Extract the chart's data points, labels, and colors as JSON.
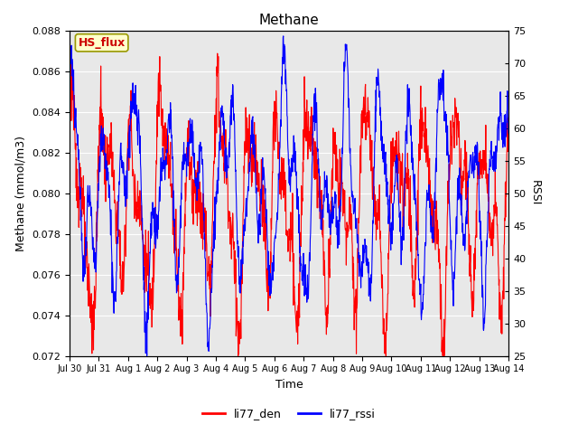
{
  "title": "Methane",
  "xlabel": "Time",
  "ylabel_left": "Methane (mmol/m3)",
  "ylabel_right": "RSSI",
  "ylim_left": [
    0.072,
    0.088
  ],
  "ylim_right": [
    25,
    75
  ],
  "yticks_left": [
    0.072,
    0.074,
    0.076,
    0.078,
    0.08,
    0.082,
    0.084,
    0.086,
    0.088
  ],
  "yticks_right": [
    25,
    30,
    35,
    40,
    45,
    50,
    55,
    60,
    65,
    70,
    75
  ],
  "xtick_labels": [
    "Jul 30",
    "Jul 31",
    "Aug 1",
    "Aug 2",
    "Aug 3",
    "Aug 4",
    "Aug 5",
    "Aug 6",
    "Aug 7",
    "Aug 8",
    "Aug 9",
    "Aug 10",
    "Aug 11",
    "Aug 12",
    "Aug 13",
    "Aug 14"
  ],
  "color_red": "#FF0000",
  "color_blue": "#0000FF",
  "legend_labels": [
    "li77_den",
    "li77_rssi"
  ],
  "hs_flux_label": "HS_flux",
  "hs_flux_bg": "#FFFFCC",
  "hs_flux_border": "#999900",
  "hs_flux_text_color": "#CC0000",
  "plot_bg": "#E8E8E8",
  "fig_bg": "#FFFFFF",
  "grid_color": "#FFFFFF",
  "num_days": 15,
  "points_per_day": 96
}
